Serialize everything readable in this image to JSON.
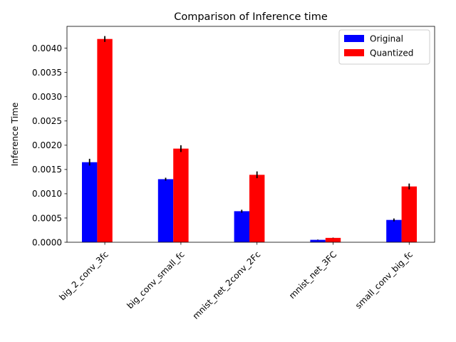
{
  "chart_data": {
    "type": "bar",
    "title": "Comparison of Inference time",
    "xlabel": "",
    "ylabel": "Inference Time",
    "categories": [
      "big_2_conv_3fc",
      "big_conv_small_fc",
      "mnist_net_2conv_2Fc",
      "mnist_net_3FC",
      "small_conv_big_fc"
    ],
    "ylim": [
      0,
      0.00445
    ],
    "yticks": [
      0.0,
      0.0005,
      0.001,
      0.0015,
      0.002,
      0.0025,
      0.003,
      0.0035,
      0.004
    ],
    "ytick_labels": [
      "0.0000",
      "0.0005",
      "0.0010",
      "0.0015",
      "0.0020",
      "0.0025",
      "0.0030",
      "0.0035",
      "0.0040"
    ],
    "grid": false,
    "legend_position": "top-right",
    "series": [
      {
        "name": "Original",
        "color": "#0000ff",
        "values": [
          0.00165,
          0.0013,
          0.00064,
          5e-05,
          0.00046
        ],
        "errors": [
          7e-05,
          3e-05,
          3e-05,
          5e-06,
          3e-05
        ]
      },
      {
        "name": "Quantized",
        "color": "#ff0000",
        "values": [
          0.00419,
          0.00193,
          0.00139,
          9e-05,
          0.00115
        ],
        "errors": [
          6e-05,
          7e-05,
          7e-05,
          5e-06,
          6e-05
        ]
      }
    ]
  }
}
